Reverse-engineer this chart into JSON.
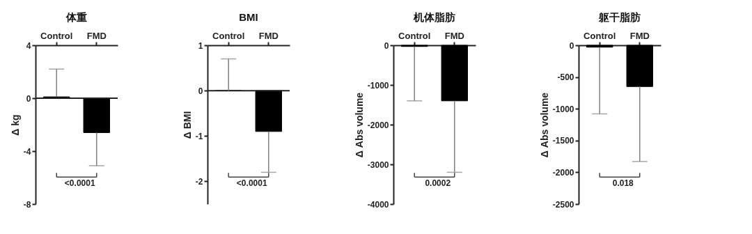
{
  "chart_data": [
    {
      "type": "bar",
      "title": "体重",
      "ylabel": "Δ kg",
      "categories": [
        "Control",
        "FMD"
      ],
      "values": [
        0.1,
        -2.6
      ],
      "errors": [
        [
          0.1,
          2.2
        ],
        [
          -5.1,
          -2.6
        ]
      ],
      "color": "#000000",
      "ylim": [
        -8,
        4
      ],
      "yticks": [
        -8,
        -4,
        0,
        4
      ],
      "ref_lines": [
        {
          "axis": "y",
          "value": 0
        }
      ],
      "annotations": [
        "<0.0001"
      ]
    },
    {
      "type": "bar",
      "title": "BMI",
      "ylabel": "Δ BMI",
      "categories": [
        "Control",
        "FMD"
      ],
      "values": [
        0,
        -0.9
      ],
      "errors": [
        [
          0,
          0.7
        ],
        [
          -1.8,
          -0.9
        ]
      ],
      "color": "#000000",
      "ylim": [
        -2.5,
        1
      ],
      "yticks": [
        -2,
        -1,
        0,
        1
      ],
      "ref_lines": [
        {
          "axis": "y",
          "value": 0
        }
      ],
      "annotations": [
        "<0.0001"
      ]
    },
    {
      "type": "bar",
      "title": "机体脂肪",
      "ylabel": "Δ Abs volume",
      "categories": [
        "Control",
        "FMD"
      ],
      "values": [
        -30,
        -1400
      ],
      "errors": [
        [
          -1400,
          -30
        ],
        [
          -3200,
          -1400
        ]
      ],
      "color": "#000000",
      "ylim": [
        -4000,
        0
      ],
      "yticks": [
        -4000,
        -3000,
        -2000,
        -1000,
        0
      ],
      "annotations": [
        "0.0002"
      ]
    },
    {
      "type": "bar",
      "title": "躯干脂肪",
      "ylabel": "Δ Abs volume",
      "categories": [
        "Control",
        "FMD"
      ],
      "values": [
        -30,
        -650
      ],
      "errors": [
        [
          -1080,
          -30
        ],
        [
          -1830,
          -650
        ]
      ],
      "color": "#000000",
      "ylim": [
        -2500,
        0
      ],
      "yticks": [
        -2500,
        -2000,
        -1500,
        -1000,
        -500,
        0
      ],
      "annotations": [
        "0.018"
      ]
    }
  ]
}
